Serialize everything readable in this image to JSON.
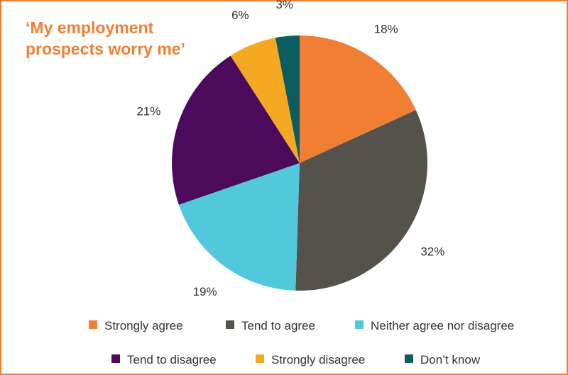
{
  "chart_data": {
    "type": "pie",
    "title": "‘My employment prospects worry me’",
    "title_color": "#f07f33",
    "categories": [
      "Strongly agree",
      "Tend to agree",
      "Neither agree nor disagree",
      "Tend to disagree",
      "Strongly disagree",
      "Don’t know"
    ],
    "values": [
      18,
      32,
      19,
      21,
      6,
      3
    ],
    "labels": [
      "18%",
      "32%",
      "19%",
      "21%",
      "6%",
      "3%"
    ],
    "colors": [
      "#f07f33",
      "#54524a",
      "#52c8dc",
      "#4b0a5c",
      "#f5a821",
      "#0c5c62"
    ],
    "start_angle": "12 o'clock",
    "direction": "clockwise",
    "legend_position": "bottom"
  }
}
